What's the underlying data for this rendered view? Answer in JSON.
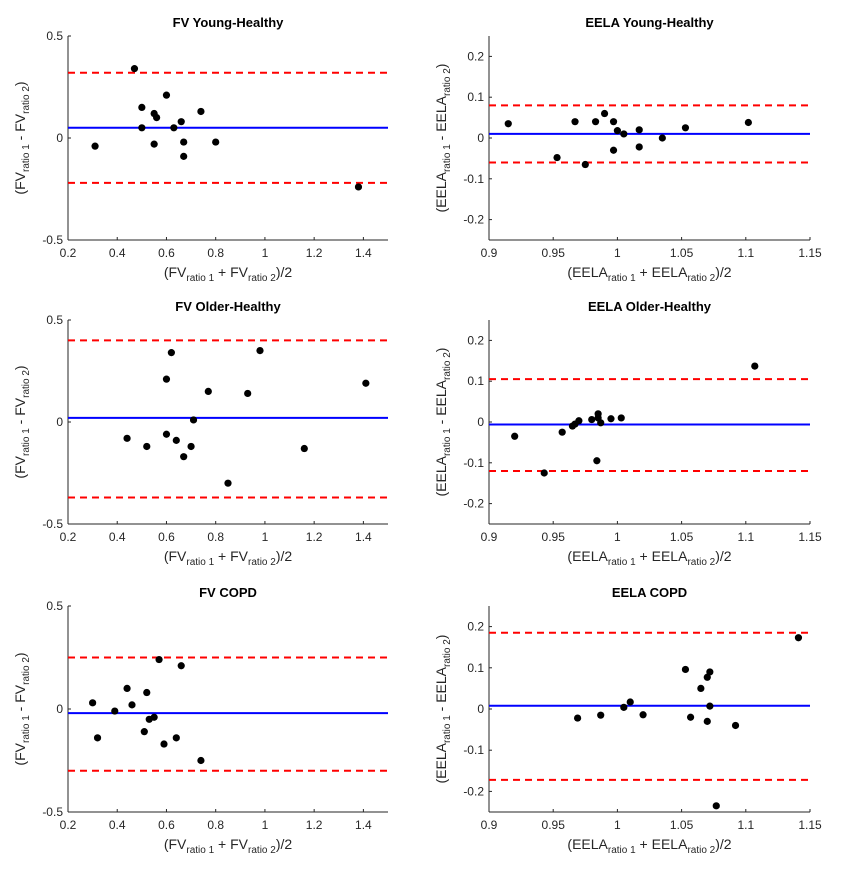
{
  "colors": {
    "mean": "#0000ff",
    "limits": "#ff0000",
    "points": "#000000",
    "axis": "#262626"
  },
  "chart_data": [
    {
      "type": "scatter",
      "title": "FV Young-Healthy",
      "xlabel": {
        "pre": "(FV",
        "sub1": "ratio 1",
        "mid": " + FV",
        "sub2": "ratio 2",
        "post": ")/2"
      },
      "ylabel": {
        "pre": "(FV",
        "sub1": "ratio 1",
        "mid": " - FV",
        "sub2": "ratio 2",
        "post": ")"
      },
      "xlim": [
        0.2,
        1.5
      ],
      "ylim": [
        -0.5,
        0.5
      ],
      "xticks": [
        0.2,
        0.4,
        0.6,
        0.8,
        1,
        1.2,
        1.4
      ],
      "xtick_labels": [
        "0.2",
        "0.4",
        "0.6",
        "0.8",
        "1",
        "1.2",
        "1.4"
      ],
      "yticks": [
        -0.5,
        0,
        0.5
      ],
      "ytick_labels": [
        "-0.5",
        "0",
        "0.5"
      ],
      "mean": 0.05,
      "upper_loa": 0.32,
      "lower_loa": -0.22,
      "points": [
        [
          0.31,
          -0.04
        ],
        [
          0.47,
          0.34
        ],
        [
          0.5,
          0.15
        ],
        [
          0.5,
          0.05
        ],
        [
          0.55,
          0.12
        ],
        [
          0.56,
          0.1
        ],
        [
          0.55,
          -0.03
        ],
        [
          0.6,
          0.21
        ],
        [
          0.63,
          0.05
        ],
        [
          0.66,
          0.08
        ],
        [
          0.67,
          -0.02
        ],
        [
          0.67,
          -0.09
        ],
        [
          0.74,
          0.13
        ],
        [
          0.8,
          -0.02
        ],
        [
          1.38,
          -0.24
        ]
      ]
    },
    {
      "type": "scatter",
      "title": "EELA Young-Healthy",
      "xlabel": {
        "pre": "(EELA",
        "sub1": "ratio 1",
        "mid": " + EELA",
        "sub2": "ratio 2",
        "post": ")/2"
      },
      "ylabel": {
        "pre": "(EELA",
        "sub1": "ratio 1",
        "mid": " - EELA",
        "sub2": "ratio 2",
        "post": ")"
      },
      "xlim": [
        0.9,
        1.15
      ],
      "ylim": [
        -0.25,
        0.25
      ],
      "xticks": [
        0.9,
        0.95,
        1,
        1.05,
        1.1,
        1.15
      ],
      "xtick_labels": [
        "0.9",
        "0.95",
        "1",
        "1.05",
        "1.1",
        "1.15"
      ],
      "yticks": [
        -0.2,
        -0.1,
        0,
        0.1,
        0.2
      ],
      "ytick_labels": [
        "-0.2",
        "-0.1",
        "0",
        "0.1",
        "0.2"
      ],
      "mean": 0.01,
      "upper_loa": 0.08,
      "lower_loa": -0.06,
      "points": [
        [
          0.915,
          0.035
        ],
        [
          0.953,
          -0.048
        ],
        [
          0.967,
          0.04
        ],
        [
          0.975,
          -0.065
        ],
        [
          0.983,
          0.04
        ],
        [
          0.99,
          0.06
        ],
        [
          0.997,
          0.04
        ],
        [
          0.997,
          -0.03
        ],
        [
          1.0,
          0.018
        ],
        [
          1.005,
          0.01
        ],
        [
          1.017,
          0.02
        ],
        [
          1.017,
          -0.022
        ],
        [
          1.035,
          0.0
        ],
        [
          1.053,
          0.025
        ],
        [
          1.102,
          0.038
        ]
      ]
    },
    {
      "type": "scatter",
      "title": "FV Older-Healthy",
      "xlabel": {
        "pre": "(FV",
        "sub1": "ratio 1",
        "mid": " + FV",
        "sub2": "ratio 2",
        "post": ")/2"
      },
      "ylabel": {
        "pre": "(FV",
        "sub1": "ratio 1",
        "mid": " - FV",
        "sub2": "ratio 2",
        "post": ")"
      },
      "xlim": [
        0.2,
        1.5
      ],
      "ylim": [
        -0.5,
        0.5
      ],
      "xticks": [
        0.2,
        0.4,
        0.6,
        0.8,
        1,
        1.2,
        1.4
      ],
      "xtick_labels": [
        "0.2",
        "0.4",
        "0.6",
        "0.8",
        "1",
        "1.2",
        "1.4"
      ],
      "yticks": [
        -0.5,
        0,
        0.5
      ],
      "ytick_labels": [
        "-0.5",
        "0",
        "0.5"
      ],
      "mean": 0.02,
      "upper_loa": 0.4,
      "lower_loa": -0.37,
      "points": [
        [
          0.44,
          -0.08
        ],
        [
          0.52,
          -0.12
        ],
        [
          0.6,
          0.21
        ],
        [
          0.6,
          -0.06
        ],
        [
          0.62,
          0.34
        ],
        [
          0.64,
          -0.09
        ],
        [
          0.67,
          -0.17
        ],
        [
          0.7,
          -0.12
        ],
        [
          0.71,
          0.01
        ],
        [
          0.77,
          0.15
        ],
        [
          0.85,
          -0.3
        ],
        [
          0.93,
          0.14
        ],
        [
          0.98,
          0.35
        ],
        [
          1.16,
          -0.13
        ],
        [
          1.41,
          0.19
        ]
      ]
    },
    {
      "type": "scatter",
      "title": "EELA Older-Healthy",
      "xlabel": {
        "pre": "(EELA",
        "sub1": "ratio 1",
        "mid": " + EELA",
        "sub2": "ratio 2",
        "post": ")/2"
      },
      "ylabel": {
        "pre": "(EELA",
        "sub1": "ratio 1",
        "mid": " - EELA",
        "sub2": "ratio 2",
        "post": ")"
      },
      "xlim": [
        0.9,
        1.15
      ],
      "ylim": [
        -0.25,
        0.25
      ],
      "xticks": [
        0.9,
        0.95,
        1,
        1.05,
        1.1,
        1.15
      ],
      "xtick_labels": [
        "0.9",
        "0.95",
        "1",
        "1.05",
        "1.1",
        "1.15"
      ],
      "yticks": [
        -0.2,
        -0.1,
        0,
        0.1,
        0.2
      ],
      "ytick_labels": [
        "-0.2",
        "-0.1",
        "0",
        "0.1",
        "0.2"
      ],
      "mean": -0.006,
      "upper_loa": 0.105,
      "lower_loa": -0.12,
      "points": [
        [
          0.92,
          -0.035
        ],
        [
          0.943,
          -0.125
        ],
        [
          0.957,
          -0.025
        ],
        [
          0.965,
          -0.01
        ],
        [
          0.967,
          -0.005
        ],
        [
          0.97,
          0.003
        ],
        [
          0.98,
          0.006
        ],
        [
          0.985,
          0.02
        ],
        [
          0.985,
          0.01
        ],
        [
          0.987,
          -0.002
        ],
        [
          0.995,
          0.008
        ],
        [
          1.003,
          0.01
        ],
        [
          0.984,
          -0.095
        ],
        [
          1.107,
          0.137
        ]
      ]
    },
    {
      "type": "scatter",
      "title": "FV COPD",
      "xlabel": {
        "pre": "(FV",
        "sub1": "ratio 1",
        "mid": " + FV",
        "sub2": "ratio 2",
        "post": ")/2"
      },
      "ylabel": {
        "pre": "(FV",
        "sub1": "ratio 1",
        "mid": " - FV",
        "sub2": "ratio 2",
        "post": ")"
      },
      "xlim": [
        0.2,
        1.5
      ],
      "ylim": [
        -0.5,
        0.5
      ],
      "xticks": [
        0.2,
        0.4,
        0.6,
        0.8,
        1,
        1.2,
        1.4
      ],
      "xtick_labels": [
        "0.2",
        "0.4",
        "0.6",
        "0.8",
        "1",
        "1.2",
        "1.4"
      ],
      "yticks": [
        -0.5,
        0,
        0.5
      ],
      "ytick_labels": [
        "-0.5",
        "0",
        "0.5"
      ],
      "mean": -0.02,
      "upper_loa": 0.25,
      "lower_loa": -0.3,
      "points": [
        [
          0.3,
          0.03
        ],
        [
          0.32,
          -0.14
        ],
        [
          0.39,
          -0.01
        ],
        [
          0.44,
          0.1
        ],
        [
          0.46,
          0.02
        ],
        [
          0.51,
          -0.11
        ],
        [
          0.52,
          0.08
        ],
        [
          0.53,
          -0.05
        ],
        [
          0.55,
          -0.04
        ],
        [
          0.57,
          0.24
        ],
        [
          0.59,
          -0.17
        ],
        [
          0.64,
          -0.14
        ],
        [
          0.66,
          0.21
        ],
        [
          0.74,
          -0.25
        ]
      ]
    },
    {
      "type": "scatter",
      "title": "EELA COPD",
      "xlabel": {
        "pre": "(EELA",
        "sub1": "ratio 1",
        "mid": " + EELA",
        "sub2": "ratio 2",
        "post": ")/2"
      },
      "ylabel": {
        "pre": "(EELA",
        "sub1": "ratio 1",
        "mid": " - EELA",
        "sub2": "ratio 2",
        "post": ")"
      },
      "xlim": [
        0.9,
        1.15
      ],
      "ylim": [
        -0.25,
        0.25
      ],
      "xticks": [
        0.9,
        0.95,
        1,
        1.05,
        1.1,
        1.15
      ],
      "xtick_labels": [
        "0.9",
        "0.95",
        "1",
        "1.05",
        "1.1",
        "1.15"
      ],
      "yticks": [
        -0.2,
        -0.1,
        0,
        0.1,
        0.2
      ],
      "ytick_labels": [
        "-0.2",
        "-0.1",
        "0",
        "0.1",
        "0.2"
      ],
      "mean": 0.008,
      "upper_loa": 0.185,
      "lower_loa": -0.172,
      "points": [
        [
          0.969,
          -0.022
        ],
        [
          0.987,
          -0.015
        ],
        [
          1.005,
          0.004
        ],
        [
          1.01,
          0.017
        ],
        [
          1.02,
          -0.014
        ],
        [
          1.053,
          0.096
        ],
        [
          1.057,
          -0.02
        ],
        [
          1.065,
          0.05
        ],
        [
          1.07,
          0.077
        ],
        [
          1.072,
          0.09
        ],
        [
          1.07,
          -0.03
        ],
        [
          1.072,
          0.007
        ],
        [
          1.077,
          -0.235
        ],
        [
          1.092,
          -0.04
        ],
        [
          1.141,
          0.173
        ]
      ]
    }
  ]
}
